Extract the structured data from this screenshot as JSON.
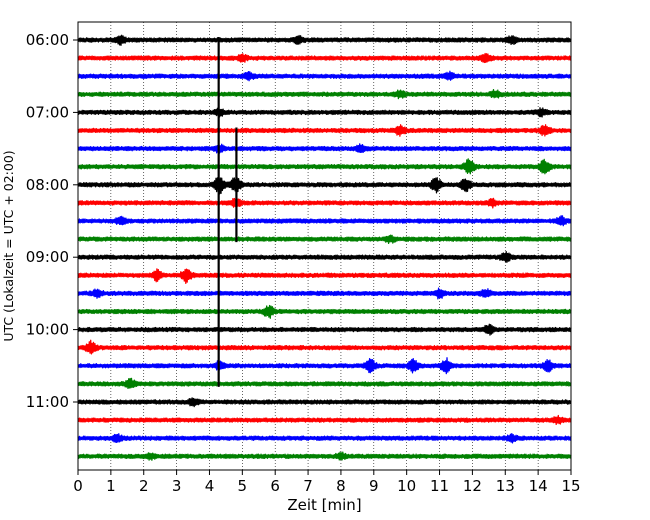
{
  "chart_data": {
    "type": "line",
    "title": "",
    "xlabel": "Zeit  [min]",
    "ylabel": "UTC (Lokalzeit = UTC + 02:00)",
    "xlim": [
      0,
      15
    ],
    "x_ticks": [
      "0",
      "1",
      "2",
      "3",
      "4",
      "5",
      "6",
      "7",
      "8",
      "9",
      "10",
      "11",
      "12",
      "13",
      "14",
      "15"
    ],
    "y_ticks": [
      "06:00",
      "07:00",
      "08:00",
      "09:00",
      "10:00",
      "11:00"
    ],
    "grid": "vertical dotted lines at each minute",
    "colors": [
      "#000000",
      "#ff0000",
      "#0000ff",
      "#008000"
    ],
    "series": [
      {
        "start": "06:00",
        "bursts": [
          {
            "t": 1.3,
            "a": 1.6
          },
          {
            "t": 6.7,
            "a": 1.4
          },
          {
            "t": 13.2,
            "a": 1.4
          }
        ]
      },
      {
        "start": "06:15",
        "bursts": [
          {
            "t": 5.0,
            "a": 1.4
          },
          {
            "t": 12.4,
            "a": 1.6
          }
        ]
      },
      {
        "start": "06:30",
        "bursts": [
          {
            "t": 5.2,
            "a": 1.4
          },
          {
            "t": 11.3,
            "a": 1.4
          }
        ]
      },
      {
        "start": "06:45",
        "bursts": [
          {
            "t": 9.8,
            "a": 1.3
          },
          {
            "t": 12.7,
            "a": 1.5
          }
        ]
      },
      {
        "start": "07:00",
        "bursts": [
          {
            "t": 4.3,
            "a": 1.2
          },
          {
            "t": 14.1,
            "a": 1.3
          }
        ]
      },
      {
        "start": "07:15",
        "bursts": [
          {
            "t": 9.8,
            "a": 2.0
          },
          {
            "t": 14.2,
            "a": 2.2
          }
        ]
      },
      {
        "start": "07:30",
        "bursts": [
          {
            "t": 4.3,
            "a": 1.4
          },
          {
            "t": 8.6,
            "a": 1.4
          }
        ]
      },
      {
        "start": "07:45",
        "bursts": [
          {
            "t": 11.9,
            "a": 3.5
          },
          {
            "t": 14.2,
            "a": 3.0
          }
        ]
      },
      {
        "start": "08:00",
        "bursts": [
          {
            "t": 4.3,
            "a": 3.5
          },
          {
            "t": 4.8,
            "a": 3.5
          },
          {
            "t": 10.9,
            "a": 3.0
          },
          {
            "t": 11.8,
            "a": 2.5
          }
        ]
      },
      {
        "start": "08:15",
        "bursts": [
          {
            "t": 4.8,
            "a": 1.6
          },
          {
            "t": 12.6,
            "a": 1.4
          }
        ]
      },
      {
        "start": "08:30",
        "bursts": [
          {
            "t": 1.3,
            "a": 1.4
          },
          {
            "t": 14.7,
            "a": 1.6
          }
        ]
      },
      {
        "start": "08:45",
        "bursts": [
          {
            "t": 9.5,
            "a": 1.3
          }
        ]
      },
      {
        "start": "09:00",
        "bursts": [
          {
            "t": 13.0,
            "a": 1.8
          }
        ]
      },
      {
        "start": "09:15",
        "bursts": [
          {
            "t": 2.4,
            "a": 2.2
          },
          {
            "t": 3.3,
            "a": 3.0
          }
        ]
      },
      {
        "start": "09:30",
        "bursts": [
          {
            "t": 0.6,
            "a": 1.6
          },
          {
            "t": 11.0,
            "a": 1.8
          },
          {
            "t": 12.4,
            "a": 1.6
          }
        ]
      },
      {
        "start": "09:45",
        "bursts": [
          {
            "t": 5.8,
            "a": 2.5
          }
        ]
      },
      {
        "start": "10:00",
        "bursts": [
          {
            "t": 12.5,
            "a": 2.0
          }
        ]
      },
      {
        "start": "10:15",
        "bursts": [
          {
            "t": 0.4,
            "a": 2.6
          }
        ]
      },
      {
        "start": "10:30",
        "bursts": [
          {
            "t": 4.3,
            "a": 1.6
          },
          {
            "t": 8.9,
            "a": 2.6
          },
          {
            "t": 10.2,
            "a": 2.6
          },
          {
            "t": 11.2,
            "a": 3.0
          },
          {
            "t": 14.3,
            "a": 2.4
          }
        ]
      },
      {
        "start": "10:45",
        "bursts": [
          {
            "t": 1.6,
            "a": 1.8
          }
        ]
      },
      {
        "start": "11:00",
        "bursts": [
          {
            "t": 3.5,
            "a": 1.4
          }
        ]
      },
      {
        "start": "11:15",
        "bursts": [
          {
            "t": 14.6,
            "a": 1.3
          }
        ]
      },
      {
        "start": "11:30",
        "bursts": [
          {
            "t": 1.2,
            "a": 1.3
          },
          {
            "t": 13.2,
            "a": 1.3
          }
        ]
      },
      {
        "start": "11:45",
        "bursts": [
          {
            "t": 2.2,
            "a": 1.2
          },
          {
            "t": 8.0,
            "a": 1.2
          }
        ]
      }
    ],
    "spikes": [
      {
        "t": 4.28,
        "from": "06:00",
        "to": "10:45"
      },
      {
        "t": 4.82,
        "from": "07:15",
        "to": "08:45"
      }
    ]
  }
}
